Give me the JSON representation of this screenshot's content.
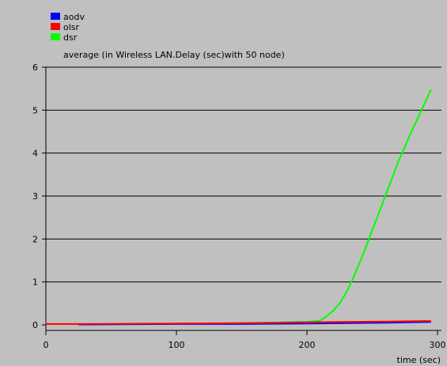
{
  "chart_data": {
    "type": "line",
    "title": "average (in Wireless LAN.Delay (sec)with 50 node)",
    "xlabel": "time (sec)",
    "ylabel": "",
    "xlim": [
      0,
      300
    ],
    "ylim": [
      0,
      6
    ],
    "xticks": [
      0,
      100,
      200,
      300
    ],
    "yticks": [
      0,
      1,
      2,
      3,
      4,
      5,
      6
    ],
    "grid": "horizontal",
    "legend_position": "top-left",
    "series": [
      {
        "name": "aodv",
        "color": "#0000ff",
        "points": [
          [
            25,
            0.01
          ],
          [
            100,
            0.02
          ],
          [
            150,
            0.02
          ],
          [
            190,
            0.03
          ],
          [
            230,
            0.04
          ],
          [
            260,
            0.05
          ],
          [
            295,
            0.07
          ]
        ]
      },
      {
        "name": "olsr",
        "color": "#ff0000",
        "points": [
          [
            0,
            0.02
          ],
          [
            25,
            0.02
          ],
          [
            155,
            0.04
          ],
          [
            180,
            0.05
          ],
          [
            200,
            0.06
          ],
          [
            225,
            0.07
          ],
          [
            262,
            0.08
          ],
          [
            290,
            0.09
          ],
          [
            295,
            0.09
          ]
        ]
      },
      {
        "name": "dsr",
        "color": "#00ff00",
        "points": [
          [
            120,
            0.03
          ],
          [
            150,
            0.04
          ],
          [
            180,
            0.06
          ],
          [
            200,
            0.07
          ],
          [
            210,
            0.1
          ],
          [
            215,
            0.2
          ],
          [
            220,
            0.33
          ],
          [
            225,
            0.5
          ],
          [
            230,
            0.75
          ],
          [
            235,
            1.07
          ],
          [
            240,
            1.42
          ],
          [
            245,
            1.8
          ],
          [
            250,
            2.2
          ],
          [
            255,
            2.6
          ],
          [
            260,
            3.0
          ],
          [
            265,
            3.4
          ],
          [
            270,
            3.8
          ],
          [
            275,
            4.15
          ],
          [
            280,
            4.5
          ],
          [
            285,
            4.82
          ],
          [
            290,
            5.15
          ],
          [
            295,
            5.48
          ]
        ]
      }
    ]
  }
}
